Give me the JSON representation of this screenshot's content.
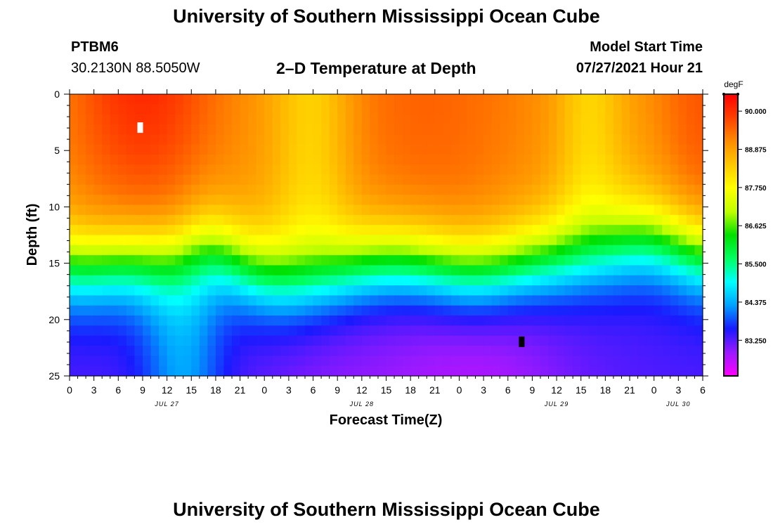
{
  "header": {
    "title_top": "University of Southern Mississippi Ocean Cube",
    "station_id": "PTBM6",
    "coords": "30.2130N  88.5050W",
    "plot_title": "2–D Temperature at Depth",
    "model_label": "Model Start Time",
    "model_time": "07/27/2021 Hour 21"
  },
  "footer": {
    "title_bottom": "University of Southern Mississippi Ocean Cube"
  },
  "chart_data": {
    "type": "heatmap",
    "title": "2–D Temperature at Depth",
    "xlabel": "Forecast Time(Z)",
    "ylabel": "Depth (ft)",
    "x_range_hours": [
      0,
      78
    ],
    "y_range_ft": [
      0,
      25
    ],
    "y_ticks": [
      "0",
      "5",
      "10",
      "15",
      "20",
      "25"
    ],
    "x_ticks": [
      "0",
      "3",
      "6",
      "9",
      "12",
      "15",
      "18",
      "21",
      "0",
      "3",
      "6",
      "9",
      "12",
      "15",
      "18",
      "21",
      "0",
      "3",
      "6",
      "9",
      "12",
      "15",
      "18",
      "21",
      "0",
      "3",
      "6"
    ],
    "date_labels": [
      {
        "text": "JUL 27",
        "hour": 12
      },
      {
        "text": "JUL 28",
        "hour": 36
      },
      {
        "text": "JUL 29",
        "hour": 60
      },
      {
        "text": "JUL 30",
        "hour": 75
      }
    ],
    "colorbar": {
      "unit": "degF",
      "min": 82.2,
      "max": 90.5,
      "labels": [
        "90.000",
        "88.875",
        "87.750",
        "86.625",
        "85.500",
        "84.375",
        "83.250"
      ],
      "label_values": [
        90.0,
        88.875,
        87.75,
        86.625,
        85.5,
        84.375,
        83.25
      ],
      "colors": [
        "#ff00ff",
        "#9b19ff",
        "#1a1aff",
        "#00a0ff",
        "#00ffff",
        "#00ff60",
        "#00e000",
        "#bfff00",
        "#ffff00",
        "#ffc800",
        "#ff8c00",
        "#ff4000",
        "#ff0000"
      ]
    },
    "markers": [
      {
        "name": "max",
        "hour": 8.7,
        "depth_ft": 3,
        "color": "#ffffff"
      },
      {
        "name": "min",
        "hour": 55.7,
        "depth_ft": 22,
        "color": "#000000"
      }
    ],
    "temperature_profile": {
      "surface_degF": 89.5,
      "mixed_layer_ft": 6,
      "bottom_degF": 83.0,
      "thermocline_ft_range": [
        13,
        18
      ]
    }
  }
}
